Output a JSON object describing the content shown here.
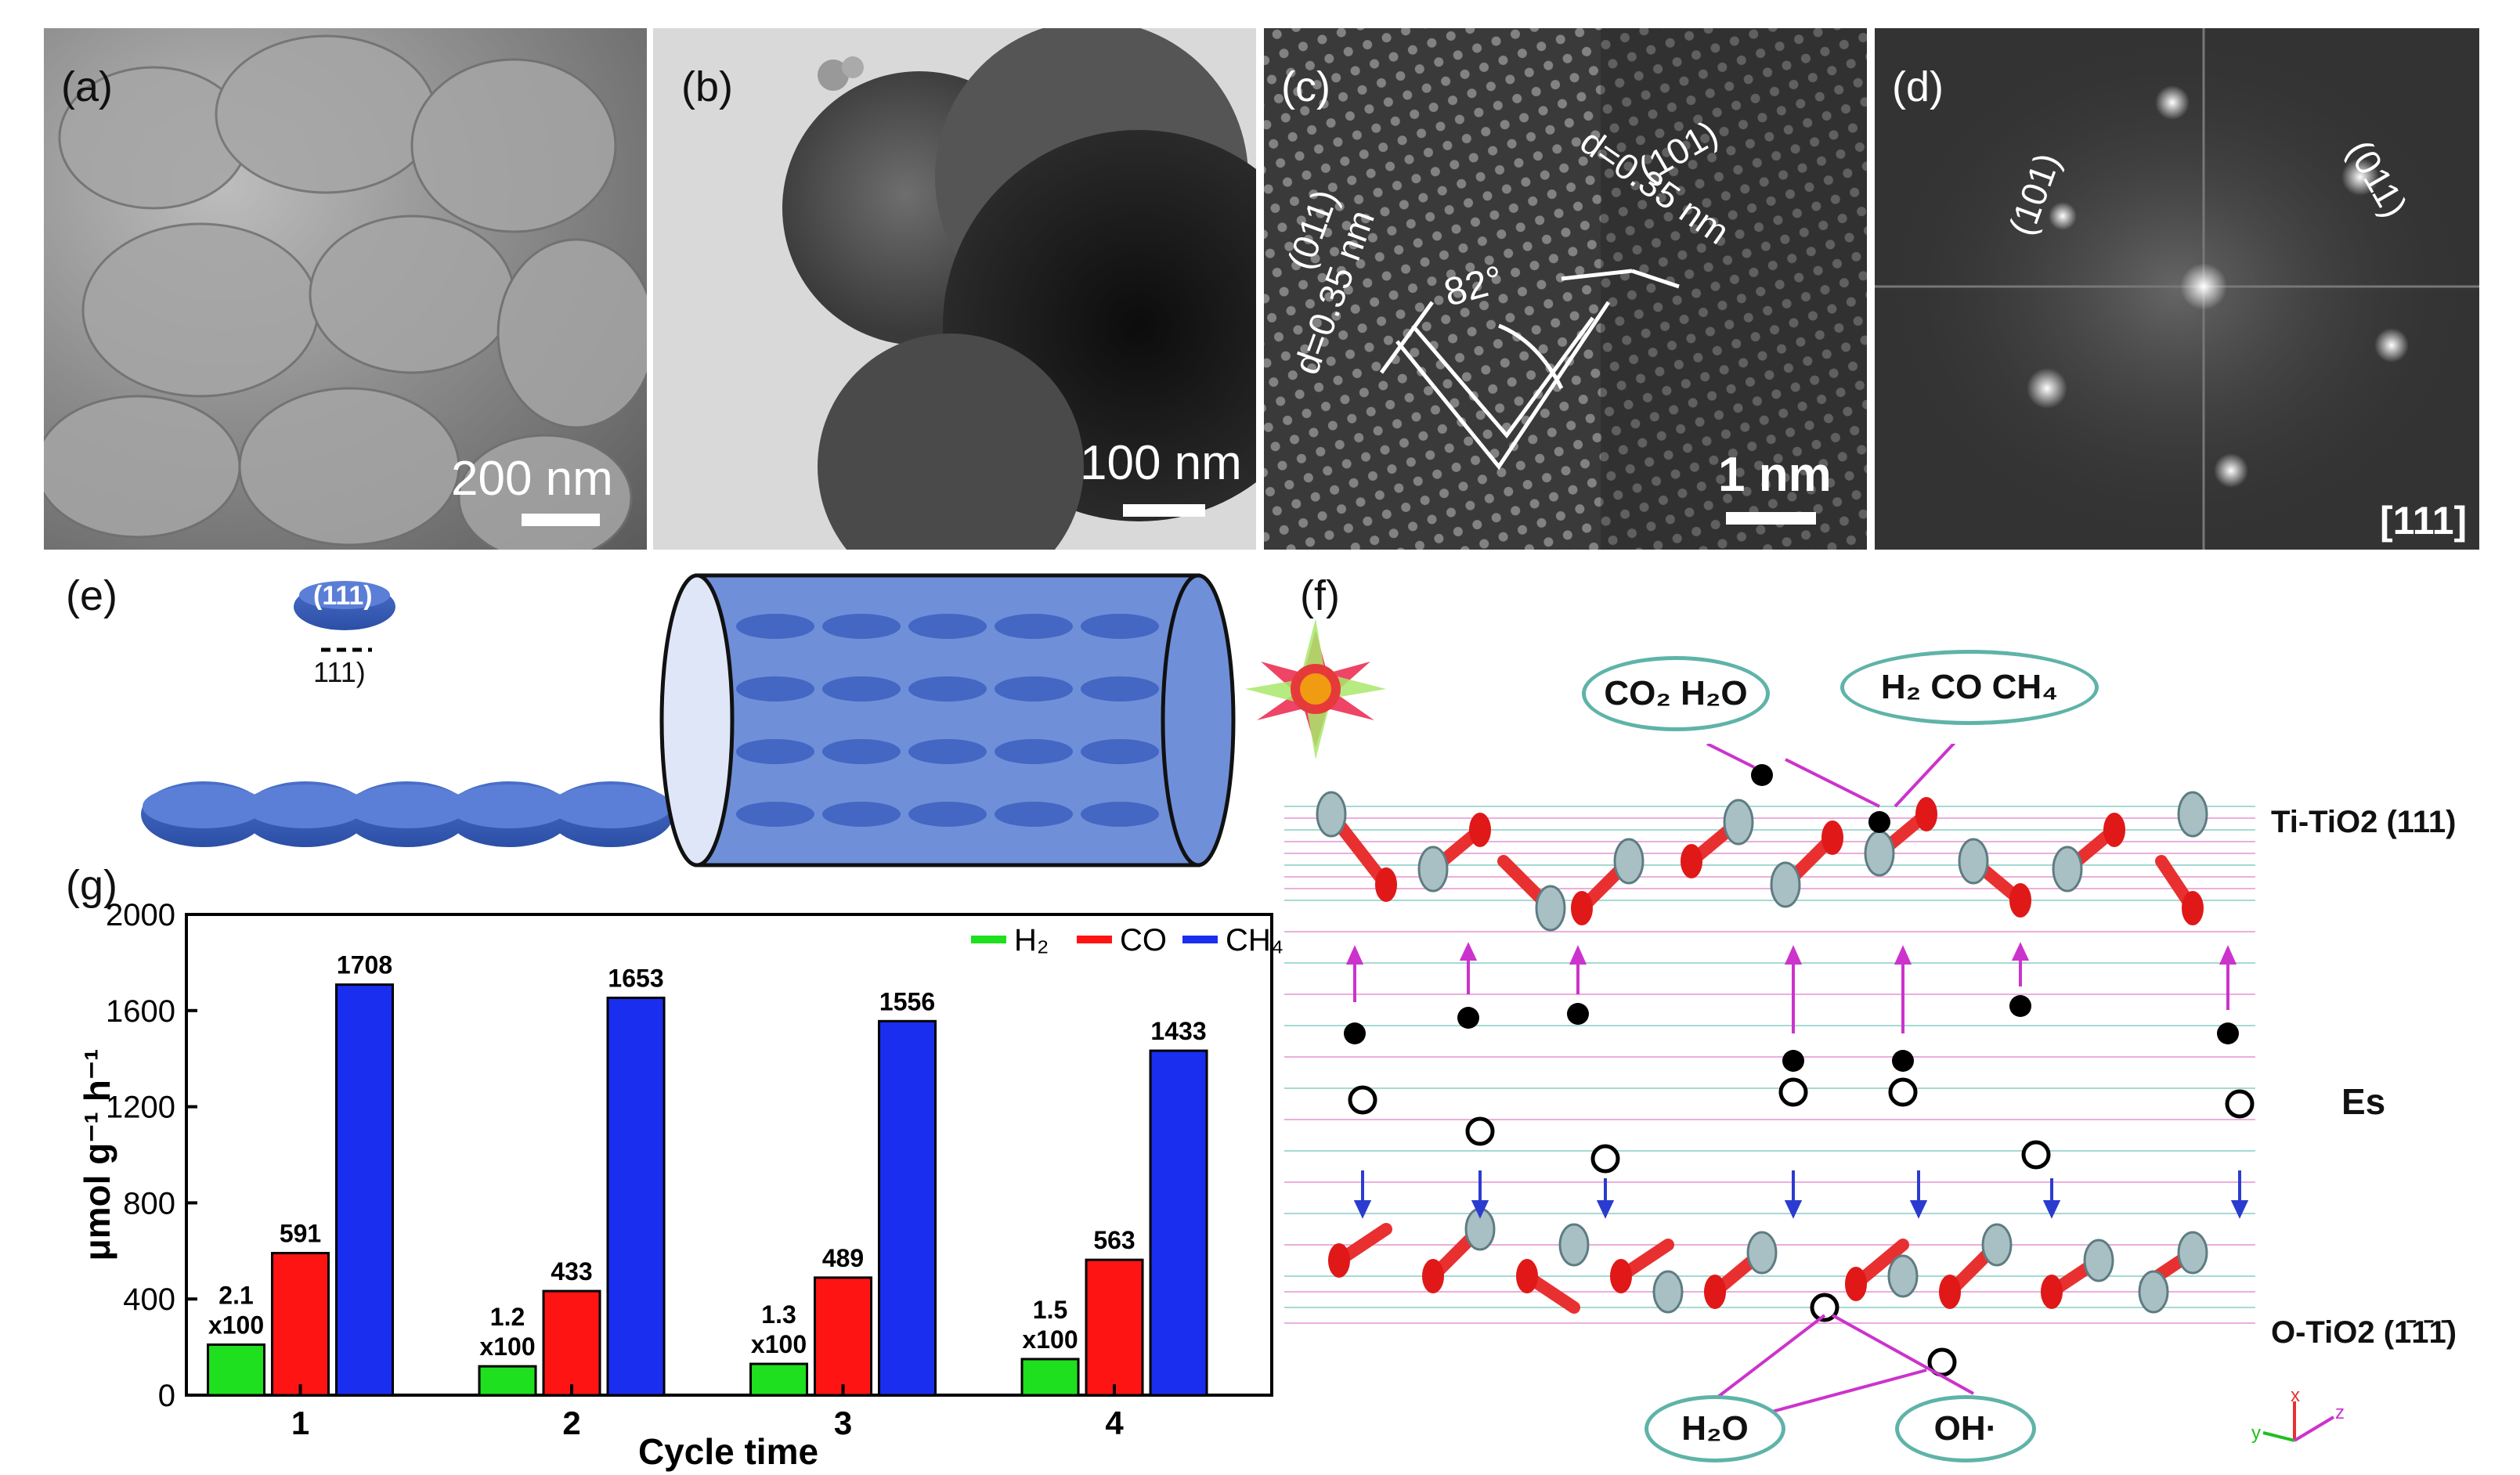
{
  "panels": {
    "a": {
      "label": "(a)",
      "scale": "200 nm"
    },
    "b": {
      "label": "(b)",
      "scale": "100 nm"
    },
    "c": {
      "label": "(c)",
      "scale": "1 nm",
      "plane1": "(011)",
      "d1": "d=0.35 nm",
      "plane2": "(101)",
      "d2": "d=0.35 nm",
      "angle": "82°"
    },
    "d": {
      "label": "(d)",
      "spot1": "(101)",
      "spot2": "(011)",
      "zone": "[111]"
    },
    "e": {
      "label": "(e)",
      "disk_label": "(111)",
      "below_label": "111)"
    },
    "f": {
      "label": "(f)",
      "reactants": "CO₂ H₂O",
      "products": "H₂ CO CH₄",
      "top_layer": "Ti-TiO2 (111)",
      "field": "Es",
      "bottom_layer": "O-TiO2 (1̄1̄1̄)",
      "water": "H₂O",
      "hydroxyl": "OH·",
      "axis_x": "x",
      "axis_y": "y",
      "axis_z": "z"
    },
    "g": {
      "label": "(g)"
    }
  },
  "chart_data": {
    "type": "bar",
    "categories": [
      "1",
      "2",
      "3",
      "4"
    ],
    "series": [
      {
        "name": "H₂",
        "color": "#1ee01e",
        "values": [
          210,
          120,
          130,
          150
        ],
        "labels": [
          "2.1 x100",
          "1.2 x100",
          "1.3 x100",
          "1.5 x100"
        ]
      },
      {
        "name": "CO",
        "color": "#ff1414",
        "values": [
          591,
          433,
          489,
          563
        ],
        "labels": [
          "591",
          "433",
          "489",
          "563"
        ]
      },
      {
        "name": "CH₄",
        "color": "#1a2ef0",
        "values": [
          1708,
          1653,
          1556,
          1433
        ],
        "labels": [
          "1708",
          "1653",
          "1556",
          "1433"
        ]
      }
    ],
    "xlabel": "Cycle time",
    "ylabel": "μmol g⁻¹ h⁻¹",
    "ylim": [
      0,
      2000
    ],
    "yticks": [
      "0",
      "400",
      "800",
      "1200",
      "1600",
      "2000"
    ],
    "ytick_values": [
      0,
      400,
      800,
      1200,
      1600,
      2000
    ],
    "legend": "top-right"
  }
}
